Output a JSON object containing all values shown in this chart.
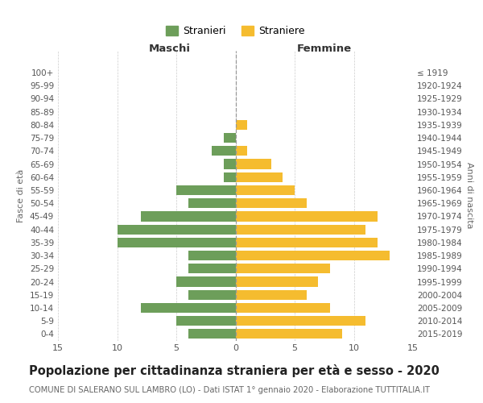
{
  "age_groups": [
    "0-4",
    "5-9",
    "10-14",
    "15-19",
    "20-24",
    "25-29",
    "30-34",
    "35-39",
    "40-44",
    "45-49",
    "50-54",
    "55-59",
    "60-64",
    "65-69",
    "70-74",
    "75-79",
    "80-84",
    "85-89",
    "90-94",
    "95-99",
    "100+"
  ],
  "birth_years": [
    "2015-2019",
    "2010-2014",
    "2005-2009",
    "2000-2004",
    "1995-1999",
    "1990-1994",
    "1985-1989",
    "1980-1984",
    "1975-1979",
    "1970-1974",
    "1965-1969",
    "1960-1964",
    "1955-1959",
    "1950-1954",
    "1945-1949",
    "1940-1944",
    "1935-1939",
    "1930-1934",
    "1925-1929",
    "1920-1924",
    "≤ 1919"
  ],
  "maschi": [
    4,
    5,
    8,
    4,
    5,
    4,
    4,
    10,
    10,
    8,
    4,
    5,
    1,
    1,
    2,
    1,
    0,
    0,
    0,
    0,
    0
  ],
  "femmine": [
    9,
    11,
    8,
    6,
    7,
    8,
    13,
    12,
    11,
    12,
    6,
    5,
    4,
    3,
    1,
    0,
    1,
    0,
    0,
    0,
    0
  ],
  "male_color": "#6d9e5a",
  "female_color": "#f5bc2f",
  "background_color": "#ffffff",
  "grid_color": "#cccccc",
  "title": "Popolazione per cittadinanza straniera per età e sesso - 2020",
  "subtitle": "COMUNE DI SALERANO SUL LAMBRO (LO) - Dati ISTAT 1° gennaio 2020 - Elaborazione TUTTITALIA.IT",
  "left_header": "Maschi",
  "right_header": "Femmine",
  "ylabel": "Fasce di età",
  "right_ylabel": "Anni di nascita",
  "legend_male": "Stranieri",
  "legend_female": "Straniere",
  "xlim": 15,
  "title_fontsize": 10.5,
  "subtitle_fontsize": 7.2
}
